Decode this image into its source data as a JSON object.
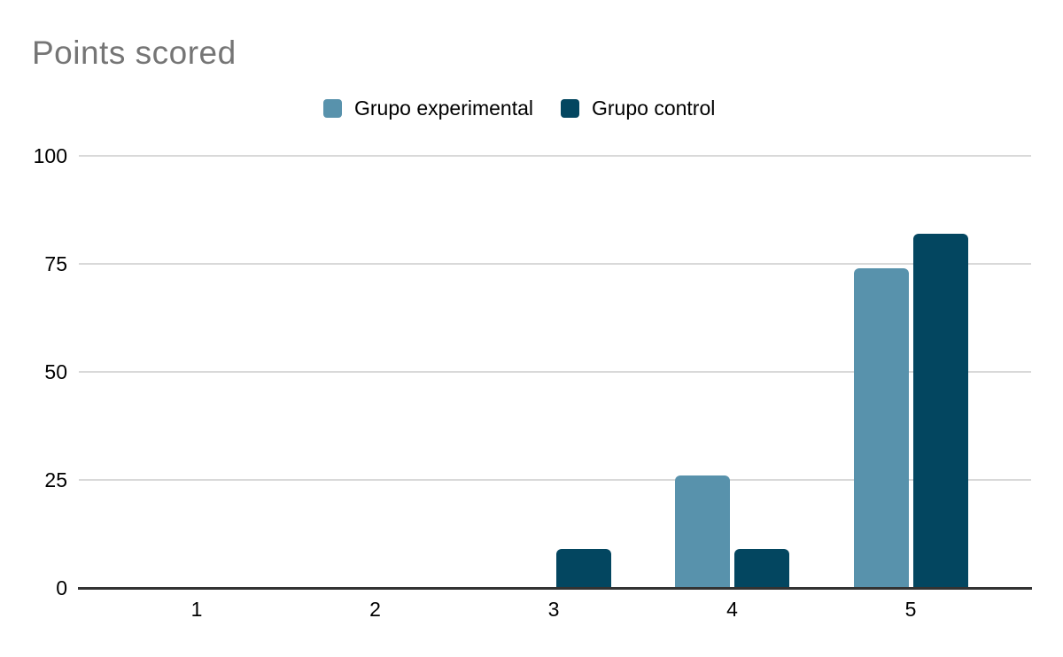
{
  "chart_data": {
    "type": "bar",
    "title": "Points scored",
    "categories": [
      "1",
      "2",
      "3",
      "4",
      "5"
    ],
    "series": [
      {
        "name": "Grupo experimental",
        "color": "#5892ac",
        "values": [
          0,
          0,
          0,
          26,
          74
        ]
      },
      {
        "name": "Grupo control",
        "color": "#034660",
        "values": [
          0,
          0,
          9,
          9,
          82
        ]
      }
    ],
    "xlabel": "",
    "ylabel": "",
    "ylim": [
      0,
      100
    ],
    "yticks": [
      0,
      25,
      50,
      75,
      100
    ],
    "grid": true,
    "legend_position": "top",
    "colors": {
      "title": "#757575",
      "text": "#000000",
      "gridline": "#d9d9d9",
      "axis_line": "#333333",
      "background": "#ffffff"
    }
  }
}
